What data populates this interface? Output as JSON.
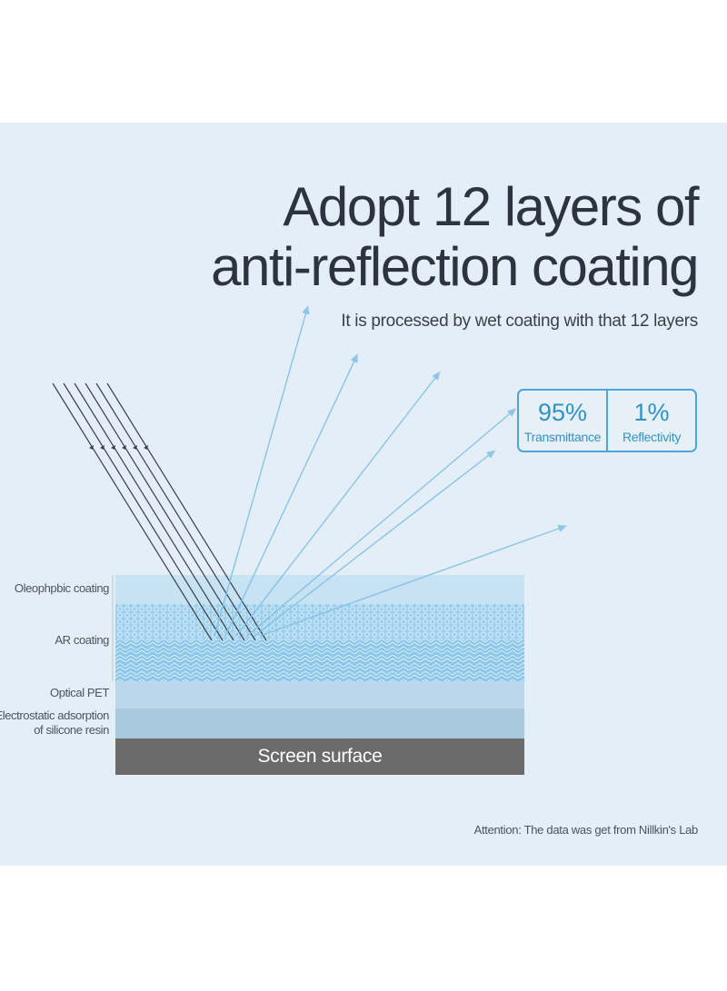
{
  "header": {
    "title_line1": "Adopt 12 layers of",
    "title_line2": "anti-reflection coating",
    "subtitle": "It is processed by wet coating with that 12 layers"
  },
  "stats": [
    {
      "value": "95%",
      "label": "Transmittance"
    },
    {
      "value": "1%",
      "label": "Reflectivity"
    }
  ],
  "layers": {
    "oleophobic": "Oleophpbic coating",
    "ar": "AR coating",
    "optical_pet": "Optical PET",
    "adsorption_line1": "Electrostatic adsorption",
    "adsorption_line2": "of silicone resin",
    "screen": "Screen surface"
  },
  "colors": {
    "background": "#e4eef6",
    "accent": "#4aa6d6",
    "title": "#2d3340",
    "screen": "#6b6b6b"
  },
  "footnote": "Attention: The data was get from Nillkin's Lab"
}
